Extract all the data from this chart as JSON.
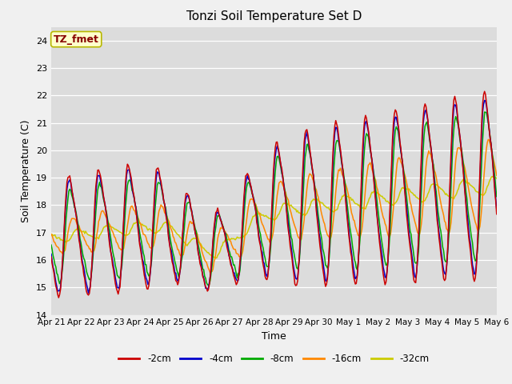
{
  "title": "Tonzi Soil Temperature Set D",
  "xlabel": "Time",
  "ylabel": "Soil Temperature (C)",
  "ylim": [
    14.0,
    24.5
  ],
  "yticks": [
    14.0,
    15.0,
    16.0,
    17.0,
    18.0,
    19.0,
    20.0,
    21.0,
    22.0,
    23.0,
    24.0
  ],
  "plot_bg_color": "#dcdcdc",
  "fig_bg_color": "#f0f0f0",
  "annotation_label": "TZ_fmet",
  "annotation_bg": "#ffffcc",
  "annotation_border": "#b8b800",
  "annotation_text_color": "#880000",
  "series_colors": {
    "-2cm": "#cc0000",
    "-4cm": "#0000cc",
    "-8cm": "#00aa00",
    "-16cm": "#ff8800",
    "-32cm": "#cccc00"
  },
  "xtick_labels": [
    "Apr 21",
    "Apr 22",
    "Apr 23",
    "Apr 24",
    "Apr 25",
    "Apr 26",
    "Apr 27",
    "Apr 28",
    "Apr 29",
    "Apr 30",
    "May 1",
    "May 2",
    "May 3",
    "May 4",
    "May 5",
    "May 6"
  ],
  "n_points": 480
}
